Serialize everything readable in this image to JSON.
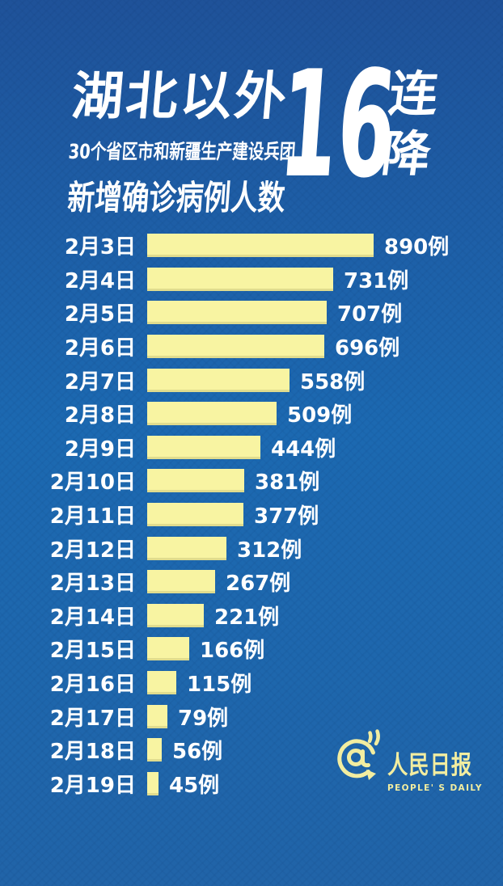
{
  "title": {
    "main": "湖北以外",
    "subtitle": "30个省区市和新疆生产建设兵团",
    "subtitle2": "新增确诊病例人数",
    "highlight_number": "16",
    "highlight_chars": [
      "连",
      "降"
    ]
  },
  "chart_data": {
    "type": "bar",
    "orientation": "horizontal",
    "title": "湖北以外新增确诊病例人数 16连降",
    "subtitle": "30个省区市和新疆生产建设兵团",
    "categories": [
      "2月3日",
      "2月4日",
      "2月5日",
      "2月6日",
      "2月7日",
      "2月8日",
      "2月9日",
      "2月10日",
      "2月11日",
      "2月12日",
      "2月13日",
      "2月14日",
      "2月15日",
      "2月16日",
      "2月17日",
      "2月18日",
      "2月19日"
    ],
    "values": [
      890,
      731,
      707,
      696,
      558,
      509,
      444,
      381,
      377,
      312,
      267,
      221,
      166,
      115,
      79,
      56,
      45
    ],
    "unit": "例",
    "xlim": [
      0,
      890
    ],
    "grid": false,
    "legend": false,
    "bar_color": "#f8f4a2",
    "label_color": "#ffffff"
  },
  "footer": {
    "logo_cn": "人民日报",
    "logo_en": "PEOPLE' S DAILY",
    "logo_color": "#f2eda0",
    "icon": "at-megaphone-icon"
  },
  "colors": {
    "bg_top": "#1f5299",
    "bg_mid": "#1c69b1",
    "bg_bottom": "#2164a8",
    "bar": "#f8f4a2",
    "text": "#ffffff",
    "accent_yellow": "#f2eda0"
  }
}
